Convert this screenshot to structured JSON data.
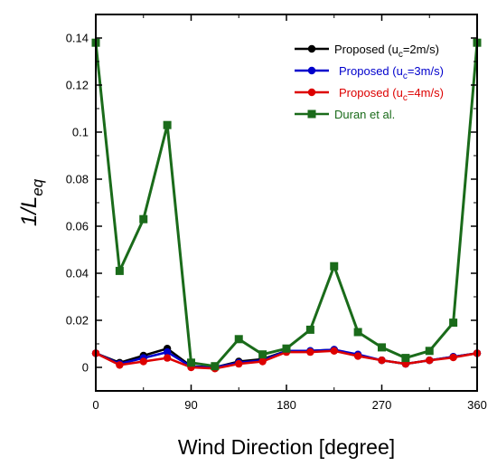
{
  "chart_data": {
    "type": "line",
    "xlabel": "Wind Direction [degree]",
    "ylabel": {
      "base": "1/L",
      "sub": "eq"
    },
    "xlim": [
      0,
      360
    ],
    "ylim": [
      -0.01,
      0.15
    ],
    "xticks": [
      0,
      90,
      180,
      270,
      360
    ],
    "yticks": [
      0,
      0.02,
      0.04,
      0.06,
      0.08,
      0.1,
      0.12,
      0.14
    ],
    "x": [
      0,
      22.5,
      45,
      67.5,
      90,
      112.5,
      135,
      157.5,
      180,
      202.5,
      225,
      247.5,
      270,
      292.5,
      315,
      337.5,
      360
    ],
    "legend_position": "top-right",
    "series": [
      {
        "name": "Proposed (u_c=2m/s)",
        "legend": {
          "pre": "Proposed (u",
          "sub": "c",
          "post": "=2m/s)"
        },
        "color": "#000000",
        "marker": "circle",
        "values": [
          0.006,
          0.002,
          0.005,
          0.008,
          0.0005,
          0.0,
          0.0025,
          0.0035,
          0.007,
          0.007,
          0.0075,
          0.005,
          0.003,
          0.0015,
          0.003,
          0.0045,
          0.006
        ]
      },
      {
        "name": "Proposed (u_c=3m/s)",
        "legend": {
          "pre": "Proposed (u",
          "sub": "c",
          "post": "=3m/s)"
        },
        "color": "#0000cc",
        "marker": "circle",
        "values": [
          0.006,
          0.0015,
          0.004,
          0.0065,
          0.0003,
          0.0,
          0.002,
          0.003,
          0.007,
          0.007,
          0.0075,
          0.0055,
          0.003,
          0.0015,
          0.003,
          0.0045,
          0.006
        ]
      },
      {
        "name": "Proposed (u_c=4m/s)",
        "legend": {
          "pre": "Proposed (u",
          "sub": "c",
          "post": "=4m/s)"
        },
        "color": "#dd0000",
        "marker": "circle",
        "values": [
          0.006,
          0.001,
          0.0025,
          0.004,
          0.0,
          -0.0005,
          0.0015,
          0.0025,
          0.0065,
          0.0065,
          0.007,
          0.0048,
          0.003,
          0.0015,
          0.003,
          0.0042,
          0.006
        ]
      },
      {
        "name": "Duran et al.",
        "legend": {
          "pre": "Duran et al.",
          "sub": "",
          "post": ""
        },
        "color": "#1a6b1a",
        "marker": "square",
        "values": [
          0.138,
          0.041,
          0.063,
          0.103,
          0.002,
          0.0005,
          0.012,
          0.0055,
          0.008,
          0.016,
          0.043,
          0.015,
          0.0085,
          0.004,
          0.007,
          0.019,
          0.138
        ]
      }
    ]
  }
}
